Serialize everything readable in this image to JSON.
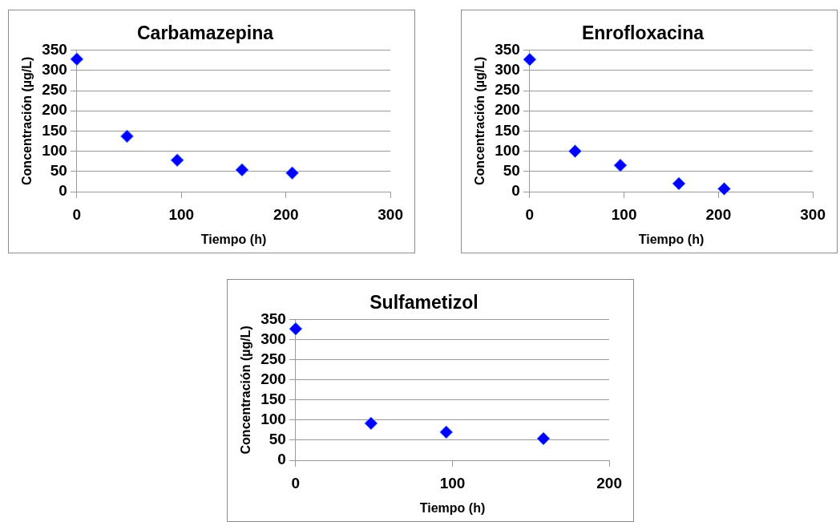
{
  "chart_data": [
    {
      "type": "scatter",
      "title": "Carbamazepina",
      "xlabel": "Tiempo (h)",
      "ylabel": "Concentración (µg/L)",
      "grid": "y",
      "marker": "diamond",
      "legend": false,
      "xlim": [
        0,
        300
      ],
      "xticks": [
        0,
        100,
        200,
        300
      ],
      "ylim": [
        0,
        350
      ],
      "yticks": [
        0,
        50,
        100,
        150,
        200,
        250,
        300,
        350
      ],
      "series": [
        {
          "color": "#0000ff",
          "x": [
            0,
            48,
            96,
            158,
            206
          ],
          "values": [
            328,
            137,
            78,
            54,
            46
          ]
        }
      ]
    },
    {
      "type": "scatter",
      "title": "Enrofloxacina",
      "xlabel": "Tiempo (h)",
      "ylabel": "Concentración (µg/L)",
      "grid": "y",
      "marker": "diamond",
      "legend": false,
      "xlim": [
        0,
        300
      ],
      "xticks": [
        0,
        100,
        200,
        300
      ],
      "ylim": [
        0,
        350
      ],
      "yticks": [
        0,
        50,
        100,
        150,
        200,
        250,
        300,
        350
      ],
      "series": [
        {
          "color": "#0000ff",
          "x": [
            0,
            48,
            96,
            158,
            206
          ],
          "values": [
            327,
            100,
            65,
            20,
            7
          ]
        }
      ]
    },
    {
      "type": "scatter",
      "title": "Sulfametizol",
      "xlabel": "Tiempo (h)",
      "ylabel": "Concentración (µg/L)",
      "grid": "y",
      "marker": "diamond",
      "legend": false,
      "xlim": [
        0,
        200
      ],
      "xticks": [
        0,
        100,
        200
      ],
      "ylim": [
        0,
        350
      ],
      "yticks": [
        0,
        50,
        100,
        150,
        200,
        250,
        300,
        350
      ],
      "series": [
        {
          "color": "#0000ff",
          "x": [
            0,
            48,
            96,
            158
          ],
          "values": [
            327,
            92,
            70,
            54
          ]
        }
      ]
    }
  ]
}
